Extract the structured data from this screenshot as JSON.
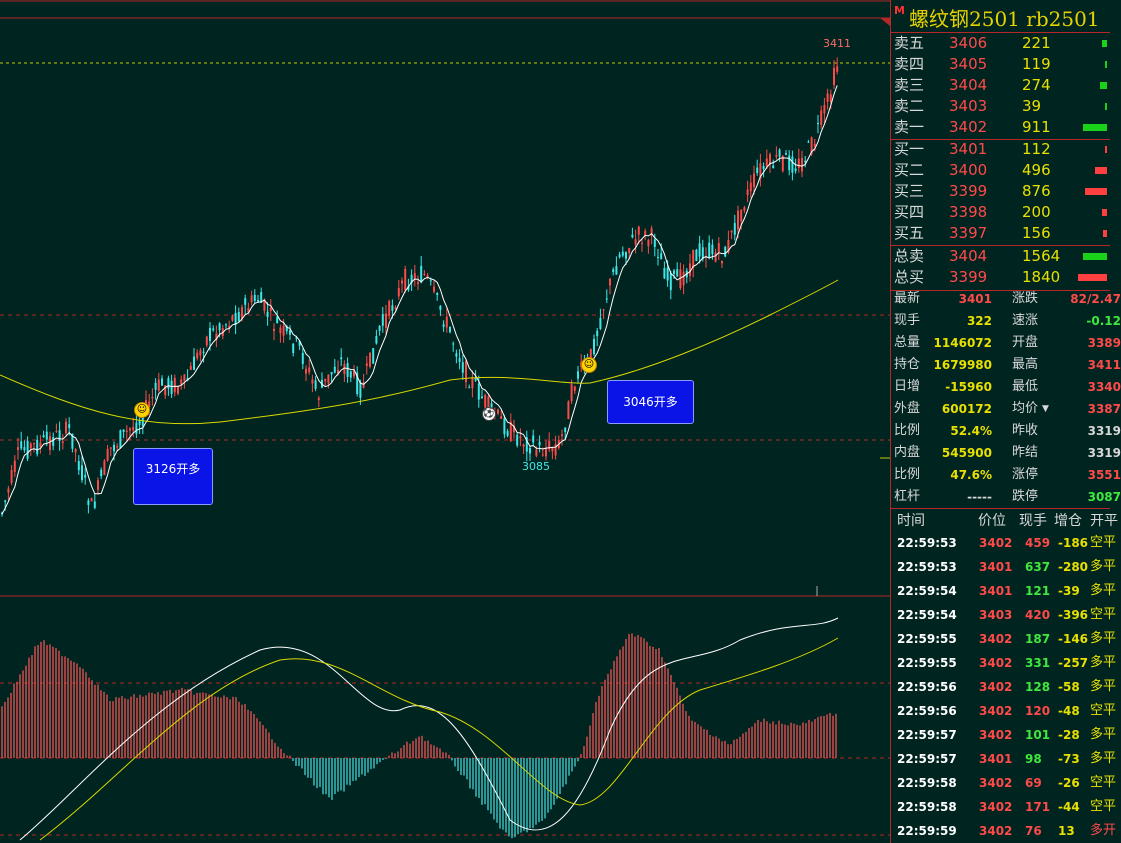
{
  "colors": {
    "up": "#ff4a4a",
    "down": "#3fe8e8",
    "ma_short": "#ffffff",
    "ma_long": "#d8d800",
    "grid": "#b42828",
    "dea": "#d8d800",
    "dif": "#ffffff"
  },
  "header": {
    "marker": "M",
    "title": "螺纹钢2501 rb2501"
  },
  "chart": {
    "peak_label": "3411",
    "trough_label": "3085",
    "signals": [
      {
        "icon": "smiley-icon",
        "label": "3126开多"
      },
      {
        "icon": "smiley-icon",
        "label": "3046开多"
      }
    ],
    "ball_icon": "soccer-ball-icon"
  },
  "order_book": {
    "asks": [
      {
        "label": "卖五",
        "price": "3406",
        "volume": "221",
        "bar": 0.02
      },
      {
        "label": "卖四",
        "price": "3405",
        "volume": "119",
        "bar": 0.01
      },
      {
        "label": "卖三",
        "price": "3404",
        "volume": "274",
        "bar": 0.03
      },
      {
        "label": "卖二",
        "price": "3403",
        "volume": "39",
        "bar": 0.005
      },
      {
        "label": "卖一",
        "price": "3402",
        "volume": "911",
        "bar": 0.1
      }
    ],
    "bids": [
      {
        "label": "买一",
        "price": "3401",
        "volume": "112",
        "bar": 0.01
      },
      {
        "label": "买二",
        "price": "3400",
        "volume": "496",
        "bar": 0.05
      },
      {
        "label": "买三",
        "price": "3399",
        "volume": "876",
        "bar": 0.09
      },
      {
        "label": "买四",
        "price": "3398",
        "volume": "200",
        "bar": 0.02
      },
      {
        "label": "买五",
        "price": "3397",
        "volume": "156",
        "bar": 0.015
      }
    ],
    "total_sell": {
      "label": "总卖",
      "price": "3404",
      "volume": "1564",
      "bar": 0.1
    },
    "total_buy": {
      "label": "总买",
      "price": "3399",
      "volume": "1840",
      "bar": 0.12
    }
  },
  "stats": [
    {
      "k1": "最新",
      "v1": "3401",
      "c1": "#ff4a4a",
      "k2": "涨跌",
      "v2": "82/2.47",
      "c2": "#ff4a4a"
    },
    {
      "k1": "现手",
      "v1": "322",
      "c1": "#e8e000",
      "k2": "速涨",
      "v2": "-0.12",
      "c2": "#3fe83f"
    },
    {
      "k1": "总量",
      "v1": "1146072",
      "c1": "#e8e000",
      "k2": "开盘",
      "v2": "3389",
      "c2": "#ff4a4a"
    },
    {
      "k1": "持仓",
      "v1": "1679980",
      "c1": "#e8e000",
      "k2": "最高",
      "v2": "3411",
      "c2": "#ff4a4a"
    },
    {
      "k1": "日增",
      "v1": "-15960",
      "c1": "#e8e000",
      "k2": "最低",
      "v2": "3340",
      "c2": "#ff4a4a"
    },
    {
      "k1": "外盘",
      "v1": "600172",
      "c1": "#e8e000",
      "k2": "均价",
      "v2": "3387",
      "c2": "#ff4a4a"
    },
    {
      "k1": "比例",
      "v1": "52.4%",
      "c1": "#e8e000",
      "k2": "昨收",
      "v2": "3319",
      "c2": "#d8d8d8"
    },
    {
      "k1": "内盘",
      "v1": "545900",
      "c1": "#e8e000",
      "k2": "昨结",
      "v2": "3319",
      "c2": "#d8d8d8"
    },
    {
      "k1": "比例",
      "v1": "47.6%",
      "c1": "#e8e000",
      "k2": "涨停",
      "v2": "3551",
      "c2": "#ff4a4a"
    },
    {
      "k1": "杠杆",
      "v1": "-----",
      "c1": "#d8d8d8",
      "k2": "跌停",
      "v2": "3087",
      "c2": "#3fe83f"
    }
  ],
  "ticks": {
    "headers": [
      "时间",
      "价位",
      "现手",
      "增仓",
      "开平"
    ],
    "rows": [
      {
        "time": "22:59:53",
        "price": "3402",
        "vol": "459",
        "chg": "-186",
        "type": "空平",
        "vc": "#ff4a4a",
        "tc": "#e8e000"
      },
      {
        "time": "22:59:53",
        "price": "3401",
        "vol": "637",
        "chg": "-280",
        "type": "多平",
        "vc": "#3fe83f",
        "tc": "#e8e000"
      },
      {
        "time": "22:59:54",
        "price": "3401",
        "vol": "121",
        "chg": "-39",
        "type": "多平",
        "vc": "#3fe83f",
        "tc": "#e8e000"
      },
      {
        "time": "22:59:54",
        "price": "3403",
        "vol": "420",
        "chg": "-396",
        "type": "空平",
        "vc": "#ff4a4a",
        "tc": "#e8e000"
      },
      {
        "time": "22:59:55",
        "price": "3402",
        "vol": "187",
        "chg": "-146",
        "type": "多平",
        "vc": "#3fe83f",
        "tc": "#e8e000"
      },
      {
        "time": "22:59:55",
        "price": "3402",
        "vol": "331",
        "chg": "-257",
        "type": "多平",
        "vc": "#3fe83f",
        "tc": "#e8e000"
      },
      {
        "time": "22:59:56",
        "price": "3402",
        "vol": "128",
        "chg": "-58",
        "type": "多平",
        "vc": "#3fe83f",
        "tc": "#e8e000"
      },
      {
        "time": "22:59:56",
        "price": "3402",
        "vol": "120",
        "chg": "-48",
        "type": "空平",
        "vc": "#ff4a4a",
        "tc": "#e8e000"
      },
      {
        "time": "22:59:57",
        "price": "3402",
        "vol": "101",
        "chg": "-28",
        "type": "多平",
        "vc": "#3fe83f",
        "tc": "#e8e000"
      },
      {
        "time": "22:59:57",
        "price": "3401",
        "vol": "98",
        "chg": "-73",
        "type": "多平",
        "vc": "#3fe83f",
        "tc": "#e8e000"
      },
      {
        "time": "22:59:58",
        "price": "3402",
        "vol": "69",
        "chg": "-26",
        "type": "空平",
        "vc": "#ff4a4a",
        "tc": "#e8e000"
      },
      {
        "time": "22:59:58",
        "price": "3402",
        "vol": "171",
        "chg": "-44",
        "type": "空平",
        "vc": "#ff4a4a",
        "tc": "#e8e000"
      },
      {
        "time": "22:59:59",
        "price": "3402",
        "vol": "76",
        "chg": "13",
        "type": "多开",
        "vc": "#ff4a4a",
        "tc": "#ff4a4a"
      }
    ]
  }
}
